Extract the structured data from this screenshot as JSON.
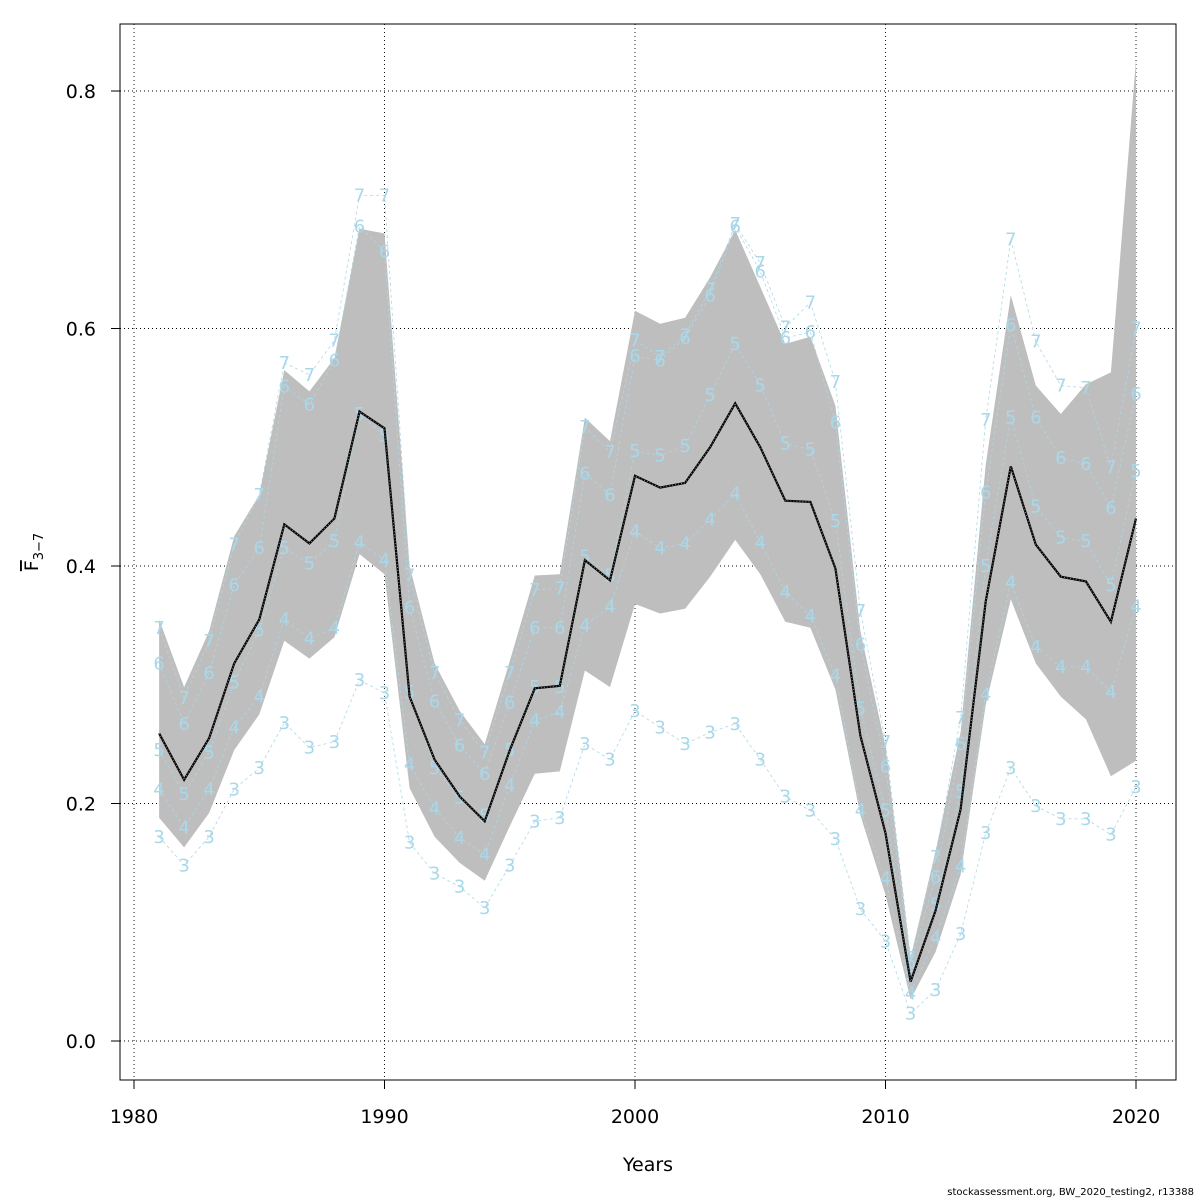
{
  "footer_text": "stockassessment.org, BW_2020_testing2, r13388",
  "colors": {
    "band": "#bebebe",
    "mean_line": "#000000",
    "age_lines": "#add8e6",
    "grid": "#000000"
  },
  "chart_data": {
    "type": "line",
    "xlabel": "Years",
    "ylabel_main": "F",
    "ylabel_sub": "3−7",
    "xlim": [
      1980,
      2020
    ],
    "ylim": [
      0.0,
      0.8
    ],
    "x_ticks": [
      "1980",
      "1990",
      "2000",
      "2010",
      "2020"
    ],
    "y_ticks": [
      "0.0",
      "0.2",
      "0.4",
      "0.6",
      "0.8"
    ],
    "grid": true,
    "x": [
      1981,
      1982,
      1983,
      1984,
      1985,
      1986,
      1987,
      1988,
      1989,
      1990,
      1991,
      1992,
      1993,
      1994,
      1995,
      1996,
      1997,
      1998,
      1999,
      2000,
      2001,
      2002,
      2003,
      2004,
      2005,
      2006,
      2007,
      2008,
      2009,
      2010,
      2011,
      2012,
      2013,
      2014,
      2015,
      2016,
      2017,
      2018,
      2019,
      2020
    ],
    "mean": [
      0.259,
      0.22,
      0.255,
      0.318,
      0.355,
      0.435,
      0.419,
      0.44,
      0.53,
      0.516,
      0.29,
      0.237,
      0.206,
      0.185,
      0.245,
      0.297,
      0.299,
      0.405,
      0.388,
      0.476,
      0.466,
      0.47,
      0.5,
      0.537,
      0.5,
      0.455,
      0.454,
      0.398,
      0.257,
      0.175,
      0.05,
      0.11,
      0.195,
      0.37,
      0.484,
      0.418,
      0.391,
      0.387,
      0.353,
      0.44
    ],
    "upper": [
      0.355,
      0.298,
      0.345,
      0.425,
      0.46,
      0.565,
      0.547,
      0.575,
      0.684,
      0.68,
      0.4,
      0.318,
      0.278,
      0.25,
      0.32,
      0.392,
      0.393,
      0.525,
      0.505,
      0.615,
      0.604,
      0.609,
      0.643,
      0.683,
      0.635,
      0.587,
      0.593,
      0.535,
      0.345,
      0.248,
      0.07,
      0.16,
      0.26,
      0.485,
      0.628,
      0.552,
      0.528,
      0.553,
      0.563,
      0.826
    ],
    "lower": [
      0.188,
      0.163,
      0.192,
      0.245,
      0.275,
      0.337,
      0.322,
      0.34,
      0.41,
      0.393,
      0.213,
      0.172,
      0.15,
      0.135,
      0.181,
      0.225,
      0.227,
      0.312,
      0.298,
      0.368,
      0.36,
      0.364,
      0.391,
      0.422,
      0.393,
      0.353,
      0.348,
      0.296,
      0.19,
      0.123,
      0.035,
      0.075,
      0.14,
      0.283,
      0.372,
      0.318,
      0.29,
      0.271,
      0.223,
      0.236
    ],
    "series": [
      {
        "name": "3",
        "values": [
          0.172,
          0.148,
          0.172,
          0.212,
          0.23,
          0.268,
          0.247,
          0.252,
          0.304,
          0.293,
          0.167,
          0.141,
          0.13,
          0.112,
          0.148,
          0.185,
          0.188,
          0.25,
          0.237,
          0.278,
          0.264,
          0.25,
          0.26,
          0.267,
          0.237,
          0.206,
          0.194,
          0.17,
          0.111,
          0.084,
          0.023,
          0.043,
          0.09,
          0.175,
          0.23,
          0.198,
          0.187,
          0.187,
          0.174,
          0.214
        ]
      },
      {
        "name": "4",
        "values": [
          0.212,
          0.18,
          0.212,
          0.264,
          0.29,
          0.355,
          0.339,
          0.348,
          0.42,
          0.405,
          0.233,
          0.196,
          0.171,
          0.157,
          0.215,
          0.27,
          0.277,
          0.35,
          0.366,
          0.429,
          0.415,
          0.419,
          0.439,
          0.461,
          0.42,
          0.378,
          0.358,
          0.308,
          0.194,
          0.137,
          0.04,
          0.087,
          0.147,
          0.292,
          0.386,
          0.332,
          0.315,
          0.315,
          0.294,
          0.366
        ]
      },
      {
        "name": "5",
        "values": [
          0.245,
          0.208,
          0.243,
          0.302,
          0.346,
          0.415,
          0.402,
          0.421,
          0.528,
          0.51,
          0.294,
          0.23,
          0.205,
          0.19,
          0.245,
          0.298,
          0.298,
          0.408,
          0.392,
          0.497,
          0.493,
          0.501,
          0.544,
          0.587,
          0.552,
          0.503,
          0.498,
          0.438,
          0.28,
          0.194,
          0.057,
          0.115,
          0.21,
          0.4,
          0.525,
          0.45,
          0.424,
          0.421,
          0.384,
          0.48
        ]
      },
      {
        "name": "6",
        "values": [
          0.318,
          0.267,
          0.31,
          0.384,
          0.415,
          0.551,
          0.536,
          0.573,
          0.686,
          0.665,
          0.365,
          0.286,
          0.249,
          0.225,
          0.285,
          0.348,
          0.348,
          0.478,
          0.46,
          0.577,
          0.573,
          0.592,
          0.628,
          0.686,
          0.648,
          0.592,
          0.597,
          0.521,
          0.334,
          0.231,
          0.066,
          0.138,
          0.25,
          0.462,
          0.603,
          0.525,
          0.491,
          0.486,
          0.449,
          0.545
        ]
      },
      {
        "name": "7",
        "values": [
          0.348,
          0.289,
          0.337,
          0.418,
          0.46,
          0.571,
          0.561,
          0.59,
          0.712,
          0.712,
          0.392,
          0.31,
          0.27,
          0.243,
          0.31,
          0.38,
          0.381,
          0.517,
          0.496,
          0.59,
          0.576,
          0.594,
          0.633,
          0.688,
          0.655,
          0.601,
          0.622,
          0.555,
          0.362,
          0.252,
          0.07,
          0.155,
          0.272,
          0.523,
          0.675,
          0.589,
          0.552,
          0.55,
          0.483,
          0.6
        ]
      }
    ]
  }
}
